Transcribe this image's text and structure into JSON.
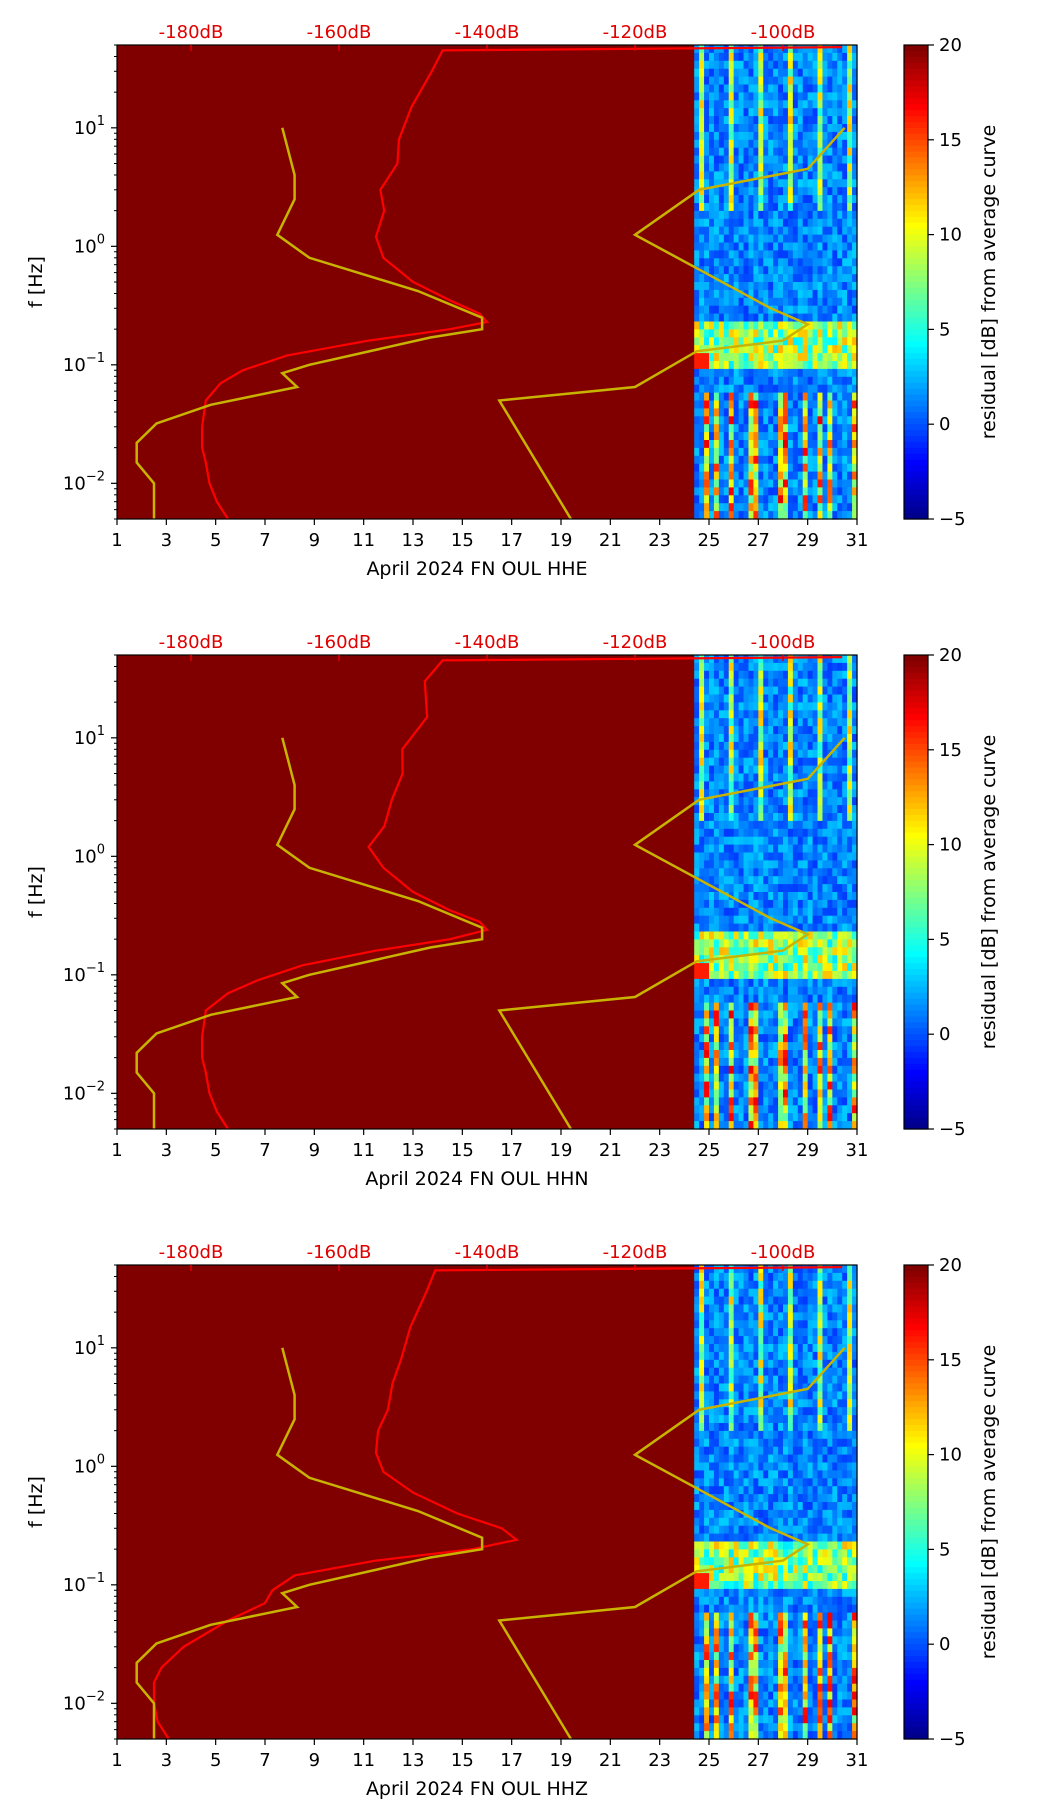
{
  "colors": {
    "background": "#800000",
    "psd_curve": "#ff0000",
    "noise_model": "#c8b400",
    "db_label": "#e00000"
  },
  "chart_data": [
    {
      "type": "heatmap",
      "xlabel": "April 2024 FN OUL  HHE",
      "ylabel": "f [Hz]",
      "x_ticks": [
        "1",
        "3",
        "5",
        "7",
        "9",
        "11",
        "13",
        "15",
        "17",
        "19",
        "21",
        "23",
        "25",
        "27",
        "29",
        "31"
      ],
      "xlim": [
        1,
        31
      ],
      "ylim": [
        0.005,
        50
      ],
      "y_scale": "log",
      "y_ticks": [
        {
          "base": "10",
          "exp": "−2",
          "value": 0.01
        },
        {
          "base": "10",
          "exp": "−1",
          "value": 0.1
        },
        {
          "base": "10",
          "exp": "0",
          "value": 1
        },
        {
          "base": "10",
          "exp": "1",
          "value": 10
        }
      ],
      "db_axis": {
        "ticks": [
          "-180dB",
          "-160dB",
          "-140dB",
          "-120dB",
          "-100dB"
        ],
        "values": [
          -180,
          -160,
          -140,
          -120,
          -100
        ],
        "range": [
          -190,
          -90
        ]
      },
      "colorbar": {
        "label": "residual [dB] from average curve",
        "ticks": [
          "20",
          "15",
          "10",
          "5",
          "0",
          "−5"
        ],
        "values": [
          20,
          15,
          10,
          5,
          0,
          -5
        ],
        "range": [
          -5,
          20
        ],
        "colormap": "jet"
      },
      "spectrogram_days": [
        24.4,
        31
      ],
      "psd_curve_db": [
        {
          "f": 0.005,
          "db": -175
        },
        {
          "f": 0.007,
          "db": -176.5
        },
        {
          "f": 0.01,
          "db": -177.5
        },
        {
          "f": 0.015,
          "db": -178
        },
        {
          "f": 0.02,
          "db": -178.5
        },
        {
          "f": 0.03,
          "db": -178.5
        },
        {
          "f": 0.05,
          "db": -178
        },
        {
          "f": 0.07,
          "db": -176
        },
        {
          "f": 0.09,
          "db": -173
        },
        {
          "f": 0.12,
          "db": -167
        },
        {
          "f": 0.16,
          "db": -156
        },
        {
          "f": 0.2,
          "db": -145
        },
        {
          "f": 0.23,
          "db": -140
        },
        {
          "f": 0.27,
          "db": -141
        },
        {
          "f": 0.35,
          "db": -145
        },
        {
          "f": 0.5,
          "db": -150
        },
        {
          "f": 0.8,
          "db": -154
        },
        {
          "f": 1.2,
          "db": -155
        },
        {
          "f": 2,
          "db": -154
        },
        {
          "f": 3,
          "db": -154
        },
        {
          "f": 5,
          "db": -153
        },
        {
          "f": 8,
          "db": -152
        },
        {
          "f": 15,
          "db": -150
        },
        {
          "f": 30,
          "db": -148
        },
        {
          "f": 45,
          "db": -146
        },
        {
          "f": 48,
          "db": -92
        }
      ],
      "noise_model_days": [
        {
          "f": 0.005,
          "day": 2.5
        },
        {
          "f": 0.01,
          "day": 2.5
        },
        {
          "f": 0.015,
          "day": 1.8
        },
        {
          "f": 0.022,
          "day": 1.8
        },
        {
          "f": 0.032,
          "day": 2.6
        },
        {
          "f": 0.046,
          "day": 4.8
        },
        {
          "f": 0.065,
          "day": 8.3
        },
        {
          "f": 0.085,
          "day": 7.7
        },
        {
          "f": 0.1,
          "day": 8.8
        },
        {
          "f": 0.17,
          "day": 13.7
        },
        {
          "f": 0.2,
          "day": 15.8
        },
        {
          "f": 0.25,
          "day": 15.8
        },
        {
          "f": 0.42,
          "day": 13.2
        },
        {
          "f": 0.8,
          "day": 8.8
        },
        {
          "f": 1.25,
          "day": 7.5
        },
        {
          "f": 2.5,
          "day": 8.2
        },
        {
          "f": 4,
          "day": 8.2
        },
        {
          "f": 10,
          "day": 7.7
        }
      ],
      "noise_model_high_days": [
        {
          "f": 0.005,
          "day": 19.4
        },
        {
          "f": 0.05,
          "day": 16.5
        },
        {
          "f": 0.065,
          "day": 22
        },
        {
          "f": 0.13,
          "day": 24.5
        },
        {
          "f": 0.16,
          "day": 28
        },
        {
          "f": 0.22,
          "day": 29
        },
        {
          "f": 0.3,
          "day": 27.5
        },
        {
          "f": 1.25,
          "day": 22
        },
        {
          "f": 3,
          "day": 24.6
        },
        {
          "f": 4.5,
          "day": 29
        },
        {
          "f": 10,
          "day": 30.5
        }
      ]
    },
    {
      "type": "heatmap",
      "xlabel": "April 2024 FN OUL  HHN",
      "ylabel": "f [Hz]",
      "x_ticks": [
        "1",
        "3",
        "5",
        "7",
        "9",
        "11",
        "13",
        "15",
        "17",
        "19",
        "21",
        "23",
        "25",
        "27",
        "29",
        "31"
      ],
      "xlim": [
        1,
        31
      ],
      "ylim": [
        0.005,
        50
      ],
      "y_scale": "log",
      "y_ticks": [
        {
          "base": "10",
          "exp": "−2",
          "value": 0.01
        },
        {
          "base": "10",
          "exp": "−1",
          "value": 0.1
        },
        {
          "base": "10",
          "exp": "0",
          "value": 1
        },
        {
          "base": "10",
          "exp": "1",
          "value": 10
        }
      ],
      "db_axis": {
        "ticks": [
          "-180dB",
          "-160dB",
          "-140dB",
          "-120dB",
          "-100dB"
        ],
        "values": [
          -180,
          -160,
          -140,
          -120,
          -100
        ],
        "range": [
          -190,
          -90
        ]
      },
      "colorbar": {
        "label": "residual [dB] from average curve",
        "ticks": [
          "20",
          "15",
          "10",
          "5",
          "0",
          "−5"
        ],
        "values": [
          20,
          15,
          10,
          5,
          0,
          -5
        ],
        "range": [
          -5,
          20
        ],
        "colormap": "jet"
      },
      "spectrogram_days": [
        24.4,
        31
      ],
      "psd_curve_db": [
        {
          "f": 0.005,
          "db": -175
        },
        {
          "f": 0.007,
          "db": -176.5
        },
        {
          "f": 0.01,
          "db": -177.5
        },
        {
          "f": 0.015,
          "db": -178
        },
        {
          "f": 0.02,
          "db": -178.5
        },
        {
          "f": 0.03,
          "db": -178.5
        },
        {
          "f": 0.05,
          "db": -178
        },
        {
          "f": 0.07,
          "db": -175
        },
        {
          "f": 0.09,
          "db": -171
        },
        {
          "f": 0.12,
          "db": -165
        },
        {
          "f": 0.16,
          "db": -155
        },
        {
          "f": 0.2,
          "db": -145
        },
        {
          "f": 0.24,
          "db": -140
        },
        {
          "f": 0.28,
          "db": -141
        },
        {
          "f": 0.35,
          "db": -145
        },
        {
          "f": 0.5,
          "db": -150
        },
        {
          "f": 0.8,
          "db": -154
        },
        {
          "f": 1.2,
          "db": -156
        },
        {
          "f": 1.8,
          "db": -154
        },
        {
          "f": 3,
          "db": -153
        },
        {
          "f": 5,
          "db": -152
        },
        {
          "f": 8,
          "db": -151
        },
        {
          "f": 15,
          "db": -149
        },
        {
          "f": 30,
          "db": -148
        },
        {
          "f": 45,
          "db": -146
        },
        {
          "f": 48,
          "db": -92
        }
      ],
      "noise_model_days": [
        {
          "f": 0.005,
          "day": 2.5
        },
        {
          "f": 0.01,
          "day": 2.5
        },
        {
          "f": 0.015,
          "day": 1.8
        },
        {
          "f": 0.022,
          "day": 1.8
        },
        {
          "f": 0.032,
          "day": 2.6
        },
        {
          "f": 0.046,
          "day": 4.8
        },
        {
          "f": 0.065,
          "day": 8.3
        },
        {
          "f": 0.085,
          "day": 7.7
        },
        {
          "f": 0.1,
          "day": 8.8
        },
        {
          "f": 0.17,
          "day": 13.7
        },
        {
          "f": 0.2,
          "day": 15.8
        },
        {
          "f": 0.25,
          "day": 15.8
        },
        {
          "f": 0.42,
          "day": 13.2
        },
        {
          "f": 0.8,
          "day": 8.8
        },
        {
          "f": 1.25,
          "day": 7.5
        },
        {
          "f": 2.5,
          "day": 8.2
        },
        {
          "f": 4,
          "day": 8.2
        },
        {
          "f": 10,
          "day": 7.7
        }
      ],
      "noise_model_high_days": [
        {
          "f": 0.005,
          "day": 19.4
        },
        {
          "f": 0.05,
          "day": 16.5
        },
        {
          "f": 0.065,
          "day": 22
        },
        {
          "f": 0.13,
          "day": 24.5
        },
        {
          "f": 0.16,
          "day": 28
        },
        {
          "f": 0.22,
          "day": 29
        },
        {
          "f": 0.3,
          "day": 27.5
        },
        {
          "f": 1.25,
          "day": 22
        },
        {
          "f": 3,
          "day": 24.6
        },
        {
          "f": 4.5,
          "day": 29
        },
        {
          "f": 10,
          "day": 30.5
        }
      ]
    },
    {
      "type": "heatmap",
      "xlabel": "April 2024 FN OUL  HHZ",
      "ylabel": "f [Hz]",
      "x_ticks": [
        "1",
        "3",
        "5",
        "7",
        "9",
        "11",
        "13",
        "15",
        "17",
        "19",
        "21",
        "23",
        "25",
        "27",
        "29",
        "31"
      ],
      "xlim": [
        1,
        31
      ],
      "ylim": [
        0.005,
        50
      ],
      "y_scale": "log",
      "y_ticks": [
        {
          "base": "10",
          "exp": "−2",
          "value": 0.01
        },
        {
          "base": "10",
          "exp": "−1",
          "value": 0.1
        },
        {
          "base": "10",
          "exp": "0",
          "value": 1
        },
        {
          "base": "10",
          "exp": "1",
          "value": 10
        }
      ],
      "db_axis": {
        "ticks": [
          "-180dB",
          "-160dB",
          "-140dB",
          "-120dB",
          "-100dB"
        ],
        "values": [
          -180,
          -160,
          -140,
          -120,
          -100
        ],
        "range": [
          -190,
          -90
        ]
      },
      "colorbar": {
        "label": "residual [dB] from average curve",
        "ticks": [
          "20",
          "15",
          "10",
          "5",
          "0",
          "−5"
        ],
        "values": [
          20,
          15,
          10,
          5,
          0,
          -5
        ],
        "range": [
          -5,
          20
        ],
        "colormap": "jet"
      },
      "spectrogram_days": [
        24.4,
        31
      ],
      "psd_curve_db": [
        {
          "f": 0.005,
          "db": -183
        },
        {
          "f": 0.007,
          "db": -184.5
        },
        {
          "f": 0.01,
          "db": -185
        },
        {
          "f": 0.015,
          "db": -185
        },
        {
          "f": 0.02,
          "db": -184
        },
        {
          "f": 0.03,
          "db": -181
        },
        {
          "f": 0.05,
          "db": -175
        },
        {
          "f": 0.07,
          "db": -170
        },
        {
          "f": 0.09,
          "db": -169
        },
        {
          "f": 0.12,
          "db": -166
        },
        {
          "f": 0.16,
          "db": -155
        },
        {
          "f": 0.2,
          "db": -142
        },
        {
          "f": 0.24,
          "db": -136
        },
        {
          "f": 0.3,
          "db": -138
        },
        {
          "f": 0.4,
          "db": -144
        },
        {
          "f": 0.6,
          "db": -150
        },
        {
          "f": 0.9,
          "db": -154
        },
        {
          "f": 1.3,
          "db": -155
        },
        {
          "f": 2,
          "db": -154
        },
        {
          "f": 3,
          "db": -154
        },
        {
          "f": 5,
          "db": -153
        },
        {
          "f": 8,
          "db": -152
        },
        {
          "f": 15,
          "db": -150
        },
        {
          "f": 30,
          "db": -149
        },
        {
          "f": 45,
          "db": -147
        },
        {
          "f": 48,
          "db": -92
        }
      ],
      "noise_model_days": [
        {
          "f": 0.005,
          "day": 2.5
        },
        {
          "f": 0.01,
          "day": 2.5
        },
        {
          "f": 0.015,
          "day": 1.8
        },
        {
          "f": 0.022,
          "day": 1.8
        },
        {
          "f": 0.032,
          "day": 2.6
        },
        {
          "f": 0.046,
          "day": 4.8
        },
        {
          "f": 0.065,
          "day": 8.3
        },
        {
          "f": 0.085,
          "day": 7.7
        },
        {
          "f": 0.1,
          "day": 8.8
        },
        {
          "f": 0.17,
          "day": 13.7
        },
        {
          "f": 0.2,
          "day": 15.8
        },
        {
          "f": 0.25,
          "day": 15.8
        },
        {
          "f": 0.42,
          "day": 13.2
        },
        {
          "f": 0.8,
          "day": 8.8
        },
        {
          "f": 1.25,
          "day": 7.5
        },
        {
          "f": 2.5,
          "day": 8.2
        },
        {
          "f": 4,
          "day": 8.2
        },
        {
          "f": 10,
          "day": 7.7
        }
      ],
      "noise_model_high_days": [
        {
          "f": 0.005,
          "day": 19.4
        },
        {
          "f": 0.05,
          "day": 16.5
        },
        {
          "f": 0.065,
          "day": 22
        },
        {
          "f": 0.13,
          "day": 24.5
        },
        {
          "f": 0.16,
          "day": 28
        },
        {
          "f": 0.22,
          "day": 29
        },
        {
          "f": 0.3,
          "day": 27.5
        },
        {
          "f": 1.25,
          "day": 22
        },
        {
          "f": 3,
          "day": 24.6
        },
        {
          "f": 4.5,
          "day": 29
        },
        {
          "f": 10,
          "day": 30.5
        }
      ]
    }
  ]
}
